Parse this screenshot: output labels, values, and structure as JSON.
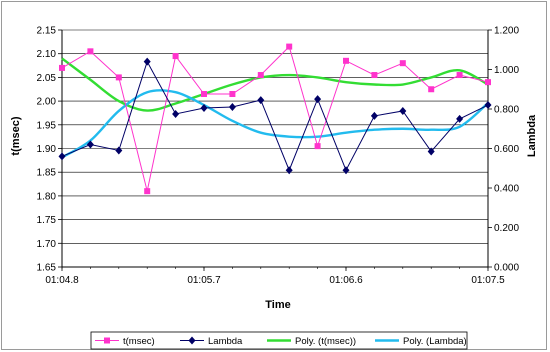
{
  "chart_data": {
    "type": "line",
    "x_label": "Time",
    "y_left_label": "t(msec)",
    "y_right_label": "Lambda",
    "x_ticks": [
      "01:04.8",
      "01:05.7",
      "01:06.6",
      "01:07.5"
    ],
    "y_left_ticks": [
      "2.15",
      "2.10",
      "2.05",
      "2.00",
      "1.95",
      "1.90",
      "1.85",
      "1.80",
      "1.75",
      "1.70",
      "1.65"
    ],
    "y_right_ticks": [
      "1.200",
      "1.000",
      "0.800",
      "0.600",
      "0.400",
      "0.200",
      "0.000"
    ],
    "y_left_lim": [
      1.65,
      2.15
    ],
    "y_right_lim": [
      0,
      1.2
    ],
    "x_index_lim": [
      0,
      15
    ],
    "grid": "horizontal",
    "legend_placement": "bottom",
    "series": [
      {
        "name": "t(msec)",
        "axis": "left",
        "color": "#ff33cc",
        "marker": "square",
        "values": [
          2.07,
          2.105,
          2.05,
          1.81,
          2.095,
          2.015,
          2.015,
          2.055,
          2.115,
          1.905,
          2.085,
          2.055,
          2.08,
          2.025,
          2.055,
          2.04
        ]
      },
      {
        "name": "Lambda",
        "axis": "right",
        "color": "#000066",
        "marker": "diamond",
        "values": [
          0.56,
          0.62,
          0.59,
          1.04,
          0.775,
          0.805,
          0.81,
          0.845,
          0.49,
          0.85,
          0.49,
          0.765,
          0.79,
          0.585,
          0.75,
          0.82
        ]
      },
      {
        "name": "Poly. (t(msec))",
        "axis": "left",
        "color": "#33dd33",
        "trend_of": "t(msec)",
        "values": [
          2.09,
          2.045,
          2.0,
          1.98,
          1.995,
          2.015,
          2.035,
          2.05,
          2.055,
          2.05,
          2.04,
          2.035,
          2.035,
          2.05,
          2.065,
          2.035
        ]
      },
      {
        "name": "Poly. (Lambda)",
        "axis": "right",
        "color": "#22bbee",
        "trend_of": "Lambda",
        "values": [
          0.555,
          0.64,
          0.79,
          0.885,
          0.885,
          0.82,
          0.74,
          0.68,
          0.66,
          0.66,
          0.68,
          0.695,
          0.7,
          0.695,
          0.71,
          0.83
        ]
      }
    ]
  }
}
